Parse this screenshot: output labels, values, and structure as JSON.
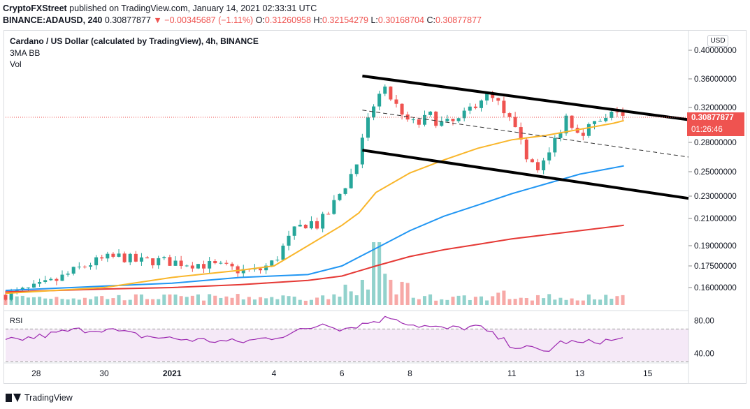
{
  "header": {
    "publisher": "CryptoFXStreet",
    "published_text": "published on TradingView.com, January 14, 2021 02:33:31 UTC",
    "symbol": "BINANCE:ADAUSD, 240",
    "last": "0.30877877",
    "change": "−0.00345687 (−1.11%)",
    "open_label": "O:",
    "open": "0.31260958",
    "high_label": "H:",
    "high": "0.32154279",
    "low_label": "L:",
    "low": "0.30168704",
    "close_label": "C:",
    "close": "0.30877877"
  },
  "legend": {
    "title": "Cardano / US Dollar (calculated by TradingView), 4h, BINANCE",
    "indicator1": "3MA BB",
    "indicator2": "Vol",
    "rsi": "RSI"
  },
  "currency_button": "USD",
  "price_tag": {
    "value": "0.30877877",
    "countdown": "01:26:46",
    "color": "#ef5350"
  },
  "footer": {
    "brand": "TradingView"
  },
  "chart_data": {
    "type": "candlestick",
    "price_axis_labels": [
      "0.40000000",
      "0.36000000",
      "0.32000000",
      "0.28000000",
      "0.25000000",
      "0.23000000",
      "0.21000000",
      "0.19000000",
      "0.17500000",
      "0.16000000"
    ],
    "price_axis_values": [
      0.4,
      0.36,
      0.32,
      0.28,
      0.25,
      0.23,
      0.21,
      0.19,
      0.175,
      0.16
    ],
    "x_tick_labels": [
      "28",
      "30",
      "2021",
      "4",
      "6",
      "8",
      "11",
      "13",
      "15"
    ],
    "x_tick_days": [
      0,
      2,
      4,
      7,
      9,
      11,
      14,
      16,
      18
    ],
    "x_range_days": [
      -0.9,
      19.2
    ],
    "rsi_levels": [
      "80.00",
      "40.00"
    ],
    "rsi_range": [
      30,
      90
    ],
    "rsi_band": [
      30,
      70
    ],
    "colors": {
      "up": "#26a69a",
      "down": "#ef5350",
      "ma50": "#f9b62b",
      "ma100": "#2196f3",
      "ma200": "#e53935",
      "rsi": "#9c27b0",
      "channel": "#000000"
    },
    "close_path": [
      [
        -0.9,
        0.155
      ],
      [
        -0.5,
        0.157
      ],
      [
        0,
        0.16
      ],
      [
        0.5,
        0.164
      ],
      [
        1,
        0.17
      ],
      [
        1.5,
        0.176
      ],
      [
        2,
        0.18
      ],
      [
        2.5,
        0.182
      ],
      [
        3,
        0.178
      ],
      [
        3.5,
        0.179
      ],
      [
        4,
        0.178
      ],
      [
        4.5,
        0.177
      ],
      [
        5,
        0.176
      ],
      [
        5.5,
        0.174
      ],
      [
        6,
        0.172
      ],
      [
        6.5,
        0.171
      ],
      [
        7,
        0.178
      ],
      [
        7.3,
        0.19
      ],
      [
        7.6,
        0.2
      ],
      [
        8,
        0.208
      ],
      [
        8.3,
        0.205
      ],
      [
        8.6,
        0.215
      ],
      [
        9,
        0.235
      ],
      [
        9.3,
        0.25
      ],
      [
        9.6,
        0.28
      ],
      [
        9.9,
        0.32
      ],
      [
        10.2,
        0.345
      ],
      [
        10.5,
        0.33
      ],
      [
        10.8,
        0.305
      ],
      [
        11.2,
        0.3
      ],
      [
        11.6,
        0.31
      ],
      [
        12,
        0.3
      ],
      [
        12.5,
        0.305
      ],
      [
        12.8,
        0.32
      ],
      [
        13.2,
        0.338
      ],
      [
        13.6,
        0.325
      ],
      [
        14,
        0.3
      ],
      [
        14.3,
        0.275
      ],
      [
        14.7,
        0.255
      ],
      [
        15,
        0.26
      ],
      [
        15.3,
        0.285
      ],
      [
        15.6,
        0.31
      ],
      [
        16,
        0.292
      ],
      [
        16.4,
        0.3
      ],
      [
        16.8,
        0.305
      ],
      [
        17.1,
        0.318
      ],
      [
        17.3,
        0.309
      ]
    ],
    "ma50": [
      [
        -0.9,
        0.156
      ],
      [
        2,
        0.16
      ],
      [
        4,
        0.167
      ],
      [
        6,
        0.172
      ],
      [
        7,
        0.175
      ],
      [
        8,
        0.19
      ],
      [
        9,
        0.205
      ],
      [
        9.5,
        0.215
      ],
      [
        10,
        0.233
      ],
      [
        11,
        0.249
      ],
      [
        12,
        0.262
      ],
      [
        13,
        0.274
      ],
      [
        14,
        0.283
      ],
      [
        15,
        0.288
      ],
      [
        16,
        0.295
      ],
      [
        17,
        0.302
      ],
      [
        17.3,
        0.305
      ]
    ],
    "ma100": [
      [
        -0.9,
        0.158
      ],
      [
        2,
        0.161
      ],
      [
        4,
        0.163
      ],
      [
        6,
        0.167
      ],
      [
        8,
        0.169
      ],
      [
        9,
        0.175
      ],
      [
        10,
        0.188
      ],
      [
        11,
        0.201
      ],
      [
        12,
        0.212
      ],
      [
        13,
        0.222
      ],
      [
        14,
        0.232
      ],
      [
        15,
        0.24
      ],
      [
        16,
        0.248
      ],
      [
        17.3,
        0.256
      ]
    ],
    "ma200": [
      [
        -0.9,
        0.157
      ],
      [
        2,
        0.159
      ],
      [
        4,
        0.16
      ],
      [
        6,
        0.162
      ],
      [
        8,
        0.165
      ],
      [
        9,
        0.168
      ],
      [
        10,
        0.175
      ],
      [
        11,
        0.182
      ],
      [
        12,
        0.187
      ],
      [
        13,
        0.191
      ],
      [
        14,
        0.195
      ],
      [
        15,
        0.198
      ],
      [
        16,
        0.201
      ],
      [
        17.3,
        0.205
      ]
    ],
    "channel_upper": [
      [
        9.6,
        0.364
      ],
      [
        19.2,
        0.306
      ]
    ],
    "channel_lower": [
      [
        9.6,
        0.272
      ],
      [
        19.2,
        0.228
      ]
    ],
    "channel_mid": [
      [
        9.6,
        0.317
      ],
      [
        19.2,
        0.265
      ]
    ],
    "rsi_path": [
      [
        -0.9,
        55
      ],
      [
        0,
        60
      ],
      [
        1,
        68
      ],
      [
        2,
        70
      ],
      [
        3,
        62
      ],
      [
        4,
        58
      ],
      [
        5,
        56
      ],
      [
        6,
        54
      ],
      [
        7,
        60
      ],
      [
        8,
        70
      ],
      [
        8.5,
        78
      ],
      [
        9,
        70
      ],
      [
        10,
        80
      ],
      [
        10.5,
        85
      ],
      [
        11,
        76
      ],
      [
        12,
        70
      ],
      [
        13,
        73
      ],
      [
        14,
        50
      ],
      [
        15,
        42
      ],
      [
        15.5,
        55
      ],
      [
        16,
        52
      ],
      [
        16.5,
        55
      ],
      [
        17,
        56
      ],
      [
        17.3,
        58
      ]
    ]
  }
}
